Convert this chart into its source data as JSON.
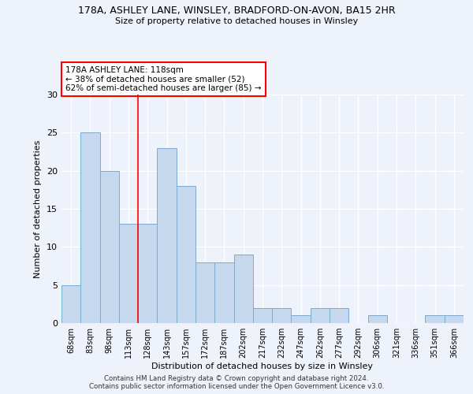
{
  "title_line1": "178A, ASHLEY LANE, WINSLEY, BRADFORD-ON-AVON, BA15 2HR",
  "title_line2": "Size of property relative to detached houses in Winsley",
  "xlabel": "Distribution of detached houses by size in Winsley",
  "ylabel": "Number of detached properties",
  "categories": [
    "68sqm",
    "83sqm",
    "98sqm",
    "113sqm",
    "128sqm",
    "143sqm",
    "157sqm",
    "172sqm",
    "187sqm",
    "202sqm",
    "217sqm",
    "232sqm",
    "247sqm",
    "262sqm",
    "277sqm",
    "292sqm",
    "306sqm",
    "321sqm",
    "336sqm",
    "351sqm",
    "366sqm"
  ],
  "values": [
    5,
    25,
    20,
    13,
    13,
    23,
    18,
    8,
    8,
    9,
    2,
    2,
    1,
    2,
    2,
    0,
    1,
    0,
    0,
    1,
    1
  ],
  "bar_color": "#c5d8ed",
  "bar_edge_color": "#7aabcf",
  "red_line_x": 3.5,
  "annotation_text": "178A ASHLEY LANE: 118sqm\n← 38% of detached houses are smaller (52)\n62% of semi-detached houses are larger (85) →",
  "annotation_box_color": "white",
  "annotation_box_edge_color": "red",
  "ylim": [
    0,
    30
  ],
  "yticks": [
    0,
    5,
    10,
    15,
    20,
    25,
    30
  ],
  "background_color": "#eef2fa",
  "grid_color": "white",
  "footer_line1": "Contains HM Land Registry data © Crown copyright and database right 2024.",
  "footer_line2": "Contains public sector information licensed under the Open Government Licence v3.0."
}
